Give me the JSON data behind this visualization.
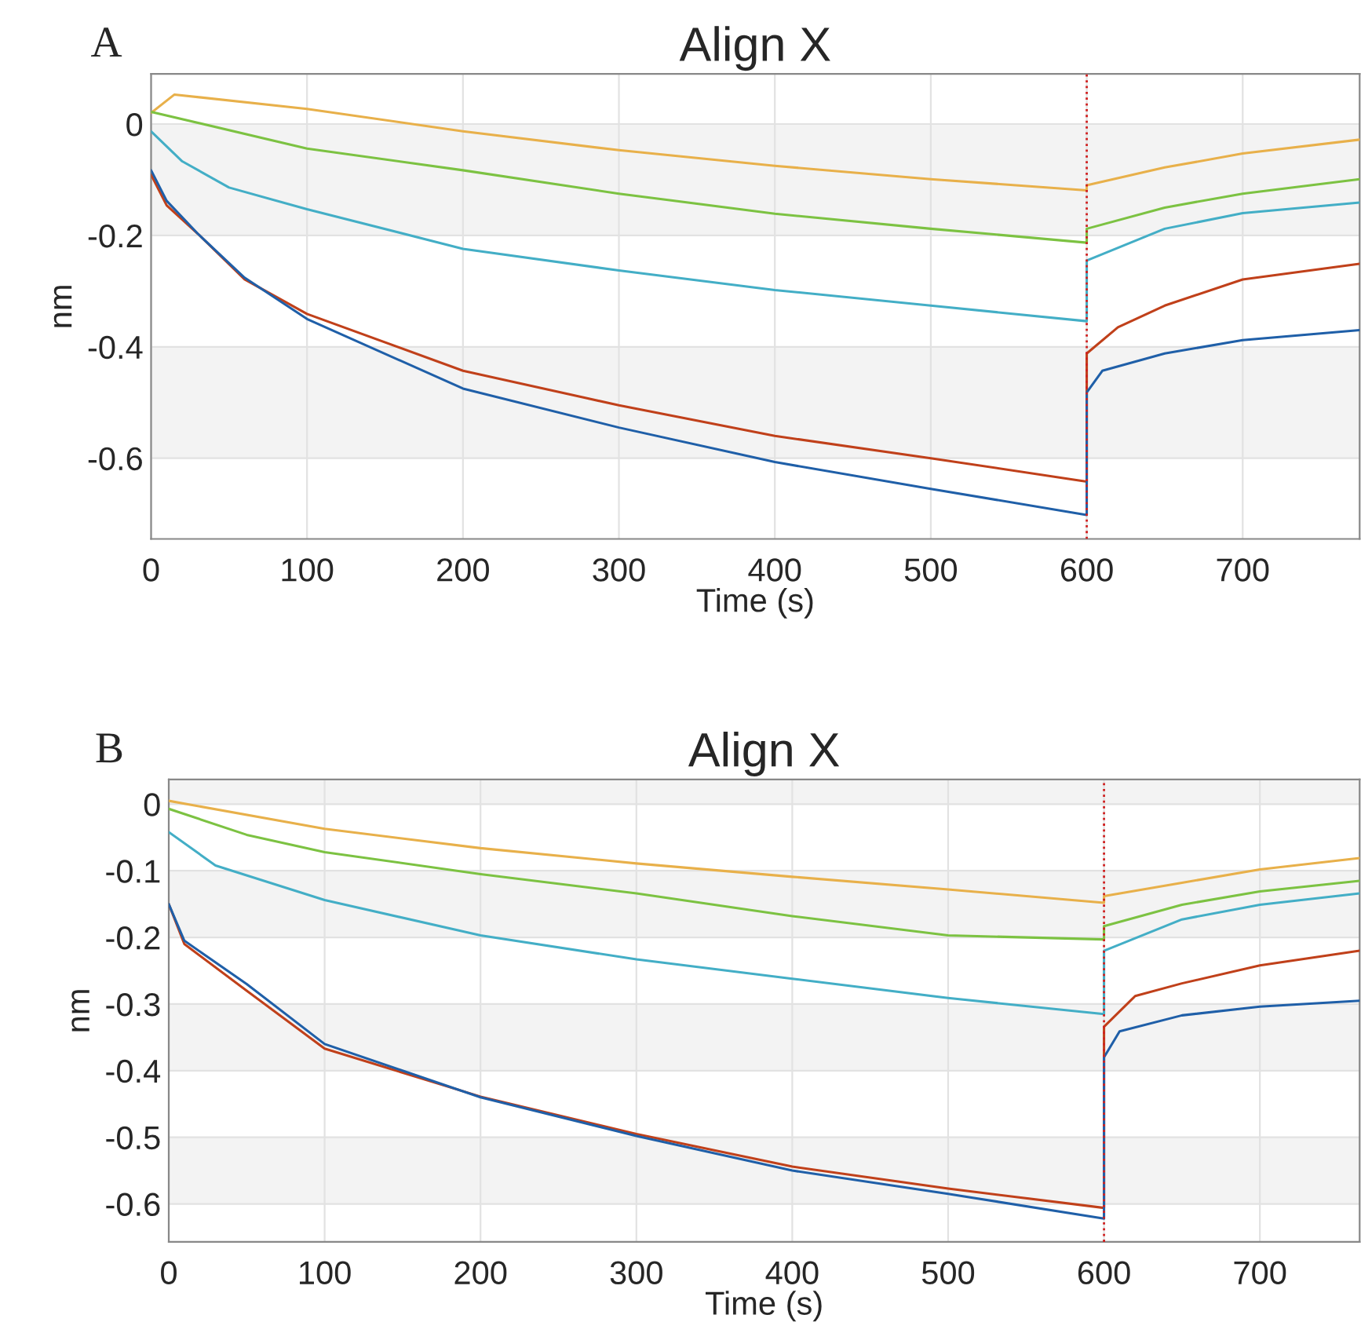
{
  "chart_data": [
    {
      "type": "line",
      "title": "Align X",
      "xlabel": "Time (s)",
      "ylabel": "nm",
      "annotations": [
        "A"
      ],
      "xlim": [
        0,
        775
      ],
      "xticks": [
        0,
        100,
        200,
        300,
        400,
        500,
        600,
        700
      ],
      "ylim": [
        -0.745,
        0.09
      ],
      "yticks": [
        {
          "value": 0,
          "label": "0"
        },
        {
          "value": -0.2,
          "label": "-0.2"
        },
        {
          "value": -0.4,
          "label": "-0.4"
        },
        {
          "value": -0.6,
          "label": "-0.6"
        }
      ],
      "grid": true,
      "line_style": "solid",
      "ref_lines": [
        {
          "axis": "x",
          "value": 600,
          "color": "#d02020",
          "line_style": "dotted"
        }
      ],
      "bands": [
        {
          "axis": "y",
          "from": -0.2,
          "to": 0,
          "color": "#f3f3f3"
        },
        {
          "axis": "y",
          "from": -0.6,
          "to": -0.4,
          "color": "#f3f3f3"
        }
      ],
      "series": [
        {
          "color": "#e8b04a",
          "x": [
            0,
            15,
            100,
            200,
            300,
            400,
            500,
            600,
            600,
            650,
            700,
            775
          ],
          "values": [
            0.02,
            0.053,
            0.027,
            -0.013,
            -0.047,
            -0.075,
            -0.099,
            -0.119,
            -0.11,
            -0.078,
            -0.053,
            -0.028
          ]
        },
        {
          "color": "#7cc242",
          "x": [
            0,
            100,
            200,
            300,
            400,
            500,
            600,
            600,
            650,
            700,
            775
          ],
          "values": [
            0.022,
            -0.044,
            -0.083,
            -0.125,
            -0.161,
            -0.188,
            -0.213,
            -0.188,
            -0.15,
            -0.125,
            -0.099
          ]
        },
        {
          "color": "#43aec6",
          "x": [
            0,
            20,
            50,
            100,
            200,
            300,
            400,
            500,
            600,
            600,
            650,
            700,
            775
          ],
          "values": [
            -0.013,
            -0.067,
            -0.114,
            -0.153,
            -0.224,
            -0.263,
            -0.298,
            -0.326,
            -0.354,
            -0.245,
            -0.188,
            -0.16,
            -0.141
          ]
        },
        {
          "color": "#c0401a",
          "x": [
            0,
            10,
            30,
            60,
            100,
            200,
            300,
            400,
            500,
            600,
            600,
            620,
            650,
            700,
            775
          ],
          "values": [
            -0.091,
            -0.146,
            -0.197,
            -0.279,
            -0.341,
            -0.443,
            -0.505,
            -0.56,
            -0.6,
            -0.642,
            -0.412,
            -0.365,
            -0.326,
            -0.279,
            -0.251
          ]
        },
        {
          "color": "#1f5fa8",
          "x": [
            0,
            10,
            30,
            60,
            100,
            200,
            300,
            400,
            500,
            600,
            600,
            610,
            650,
            700,
            775
          ],
          "values": [
            -0.083,
            -0.138,
            -0.197,
            -0.276,
            -0.35,
            -0.475,
            -0.545,
            -0.607,
            -0.655,
            -0.702,
            -0.482,
            -0.443,
            -0.412,
            -0.388,
            -0.37
          ]
        }
      ]
    },
    {
      "type": "line",
      "title": "Align X",
      "xlabel": "Time (s)",
      "ylabel": "nm",
      "annotations": [
        "B"
      ],
      "xlim": [
        0,
        764
      ],
      "xticks": [
        0,
        100,
        200,
        300,
        400,
        500,
        600,
        700
      ],
      "ylim": [
        -0.657,
        0.037
      ],
      "yticks": [
        {
          "value": 0,
          "label": "0"
        },
        {
          "value": -0.1,
          "label": "-0.1"
        },
        {
          "value": -0.2,
          "label": "-0.2"
        },
        {
          "value": -0.3,
          "label": "-0.3"
        },
        {
          "value": -0.4,
          "label": "-0.4"
        },
        {
          "value": -0.5,
          "label": "-0.5"
        },
        {
          "value": -0.6,
          "label": "-0.6"
        }
      ],
      "grid": true,
      "line_style": "solid",
      "ref_lines": [
        {
          "axis": "x",
          "value": 600,
          "color": "#d02020",
          "line_style": "dotted"
        }
      ],
      "bands": [
        {
          "axis": "y",
          "from": 0,
          "to": 0.037,
          "color": "#f3f3f3"
        },
        {
          "axis": "y",
          "from": -0.2,
          "to": -0.1,
          "color": "#f3f3f3"
        },
        {
          "axis": "y",
          "from": -0.4,
          "to": -0.3,
          "color": "#f3f3f3"
        },
        {
          "axis": "y",
          "from": -0.6,
          "to": -0.5,
          "color": "#f3f3f3"
        }
      ],
      "series": [
        {
          "color": "#e8b04a",
          "x": [
            0,
            100,
            200,
            300,
            400,
            500,
            600,
            600,
            650,
            700,
            764
          ],
          "values": [
            0.005,
            -0.037,
            -0.066,
            -0.089,
            -0.109,
            -0.128,
            -0.148,
            -0.138,
            -0.118,
            -0.098,
            -0.081
          ]
        },
        {
          "color": "#7cc242",
          "x": [
            0,
            50,
            100,
            200,
            300,
            400,
            500,
            600,
            600,
            650,
            700,
            764
          ],
          "values": [
            -0.007,
            -0.046,
            -0.072,
            -0.105,
            -0.134,
            -0.168,
            -0.197,
            -0.203,
            -0.183,
            -0.151,
            -0.131,
            -0.115
          ]
        },
        {
          "color": "#43aec6",
          "x": [
            0,
            30,
            100,
            200,
            300,
            400,
            500,
            600,
            600,
            650,
            700,
            764
          ],
          "values": [
            -0.042,
            -0.092,
            -0.144,
            -0.197,
            -0.233,
            -0.262,
            -0.291,
            -0.315,
            -0.22,
            -0.173,
            -0.151,
            -0.134
          ]
        },
        {
          "color": "#c0401a",
          "x": [
            0,
            10,
            50,
            100,
            200,
            300,
            400,
            500,
            600,
            600,
            620,
            650,
            700,
            764
          ],
          "values": [
            -0.15,
            -0.21,
            -0.28,
            -0.367,
            -0.439,
            -0.495,
            -0.544,
            -0.577,
            -0.606,
            -0.334,
            -0.288,
            -0.269,
            -0.242,
            -0.22
          ]
        },
        {
          "color": "#1f5fa8",
          "x": [
            0,
            10,
            50,
            100,
            200,
            300,
            400,
            500,
            600,
            600,
            610,
            650,
            700,
            764
          ],
          "values": [
            -0.15,
            -0.205,
            -0.27,
            -0.36,
            -0.44,
            -0.498,
            -0.55,
            -0.585,
            -0.622,
            -0.38,
            -0.341,
            -0.317,
            -0.304,
            -0.295
          ]
        }
      ]
    }
  ]
}
